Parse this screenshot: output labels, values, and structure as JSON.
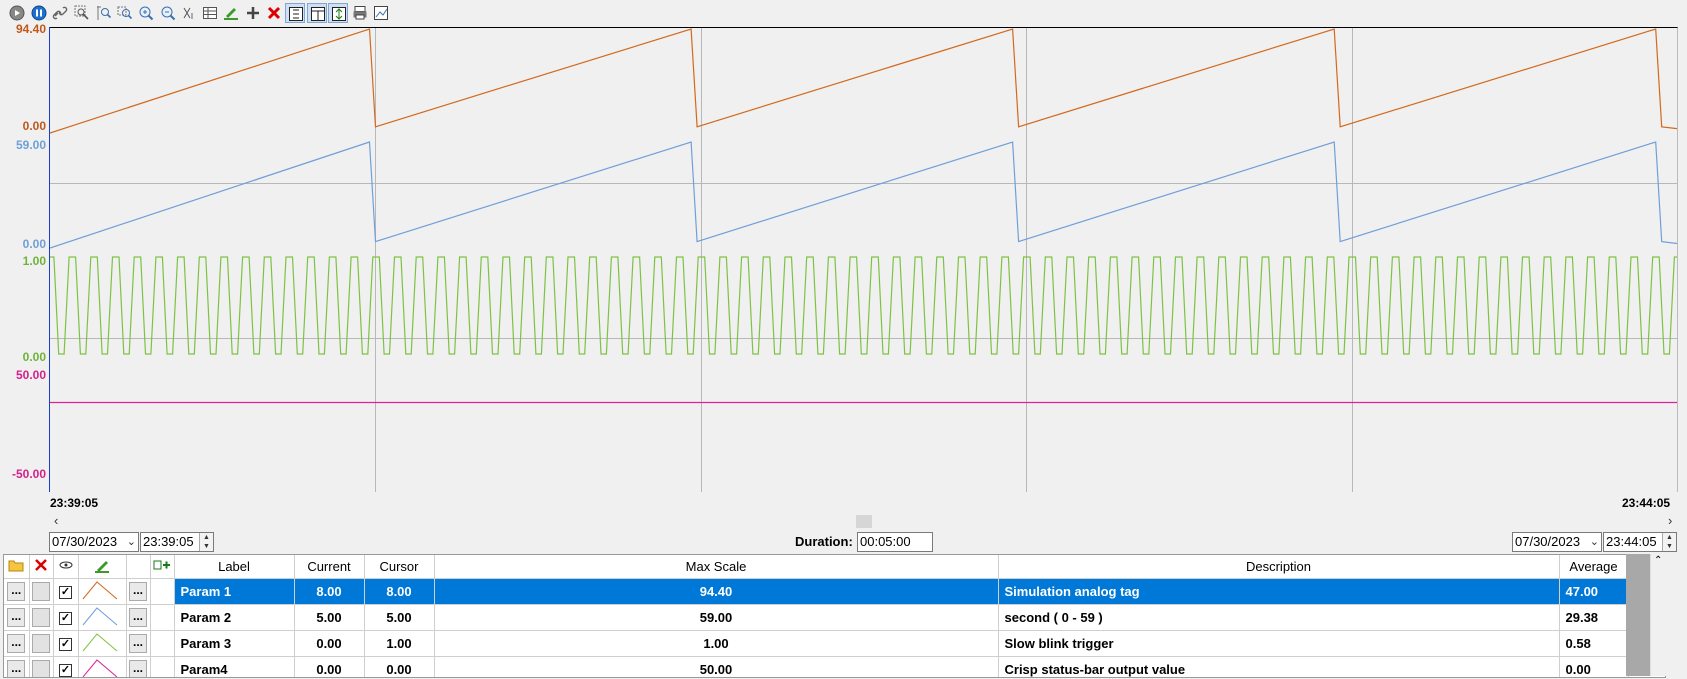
{
  "toolbar": {
    "buttons": [
      {
        "name": "play-icon"
      },
      {
        "name": "pause-icon"
      },
      {
        "name": "link-icon"
      },
      {
        "name": "zoom-fit-icon"
      },
      {
        "name": "zoom-area-icon"
      },
      {
        "name": "zoom-area-out-icon"
      },
      {
        "name": "zoom-in-icon"
      },
      {
        "name": "zoom-out-icon"
      },
      {
        "name": "cursor-icon"
      },
      {
        "name": "table-icon"
      },
      {
        "name": "pen-icon"
      },
      {
        "name": "add-icon"
      },
      {
        "name": "delete-icon"
      },
      {
        "name": "stack-icon"
      },
      {
        "name": "split-icon"
      },
      {
        "name": "scale-icon"
      },
      {
        "name": "print-icon"
      },
      {
        "name": "export-icon"
      }
    ]
  },
  "colors": {
    "param1": "#d2691e",
    "param2": "#6f9fd8",
    "param3": "#7dc242",
    "param4": "#e0209a",
    "selection": "#0078d7",
    "axis_left": "#1a3fd0",
    "grid": "#b8b8b8"
  },
  "scale_labels": [
    {
      "text": "94.40",
      "color": "#c0581a"
    },
    {
      "text": "0.00",
      "color": "#c0581a"
    },
    {
      "text": "59.00",
      "color": "#6f9fd8"
    },
    {
      "text": "0.00",
      "color": "#6f9fd8"
    },
    {
      "text": "1.00",
      "color": "#6fb43a"
    },
    {
      "text": "0.00",
      "color": "#6fb43a"
    },
    {
      "text": "50.00",
      "color": "#d41f8d"
    },
    {
      "text": "-50.00",
      "color": "#d41f8d"
    }
  ],
  "time_axis": {
    "start": "23:39:05",
    "end": "23:44:05"
  },
  "range": {
    "start_date": "07/30/2023",
    "start_time": "23:39:05",
    "duration_label": "Duration:",
    "duration": "00:05:00",
    "end_date": "07/30/2023",
    "end_time": "23:44:05"
  },
  "chart_data": {
    "type": "line",
    "x_range": [
      "23:39:05",
      "23:44:05"
    ],
    "grid": true,
    "series": [
      {
        "name": "Param 1",
        "color": "#d2691e",
        "ylim": [
          0,
          94.4
        ],
        "pattern": "sawtooth",
        "periods": 5,
        "min": 0,
        "max": 94.4
      },
      {
        "name": "Param 2",
        "color": "#6f9fd8",
        "ylim": [
          0,
          59
        ],
        "pattern": "sawtooth",
        "periods": 5,
        "min": 0,
        "max": 59
      },
      {
        "name": "Param 3",
        "color": "#7dc242",
        "ylim": [
          0,
          1
        ],
        "pattern": "square",
        "cycles": 75,
        "min": 0,
        "max": 1
      },
      {
        "name": "Param4",
        "color": "#e0209a",
        "ylim": [
          -50,
          50
        ],
        "pattern": "constant",
        "value": 0
      }
    ]
  },
  "table": {
    "headers": {
      "label": "Label",
      "current": "Current",
      "cursor": "Cursor",
      "max_scale": "Max Scale",
      "description": "Description",
      "average": "Average"
    },
    "cell_button": "...",
    "rows": [
      {
        "label": "Param 1",
        "current": "8.00",
        "cursor": "8.00",
        "max_scale": "94.40",
        "description": "Simulation analog tag",
        "average": "47.00",
        "color": "#d2691e",
        "checked": true,
        "selected": true
      },
      {
        "label": "Param 2",
        "current": "5.00",
        "cursor": "5.00",
        "max_scale": "59.00",
        "description": "second ( 0 - 59 )",
        "average": "29.38",
        "color": "#6f9fd8",
        "checked": true,
        "selected": false
      },
      {
        "label": "Param 3",
        "current": "0.00",
        "cursor": "1.00",
        "max_scale": "1.00",
        "description": "Slow blink trigger",
        "average": "0.58",
        "color": "#7dc242",
        "checked": true,
        "selected": false
      },
      {
        "label": "Param4",
        "current": "0.00",
        "cursor": "0.00",
        "max_scale": "50.00",
        "description": "Crisp status-bar output value",
        "average": "0.00",
        "color": "#e0209a",
        "checked": true,
        "selected": false
      }
    ]
  }
}
